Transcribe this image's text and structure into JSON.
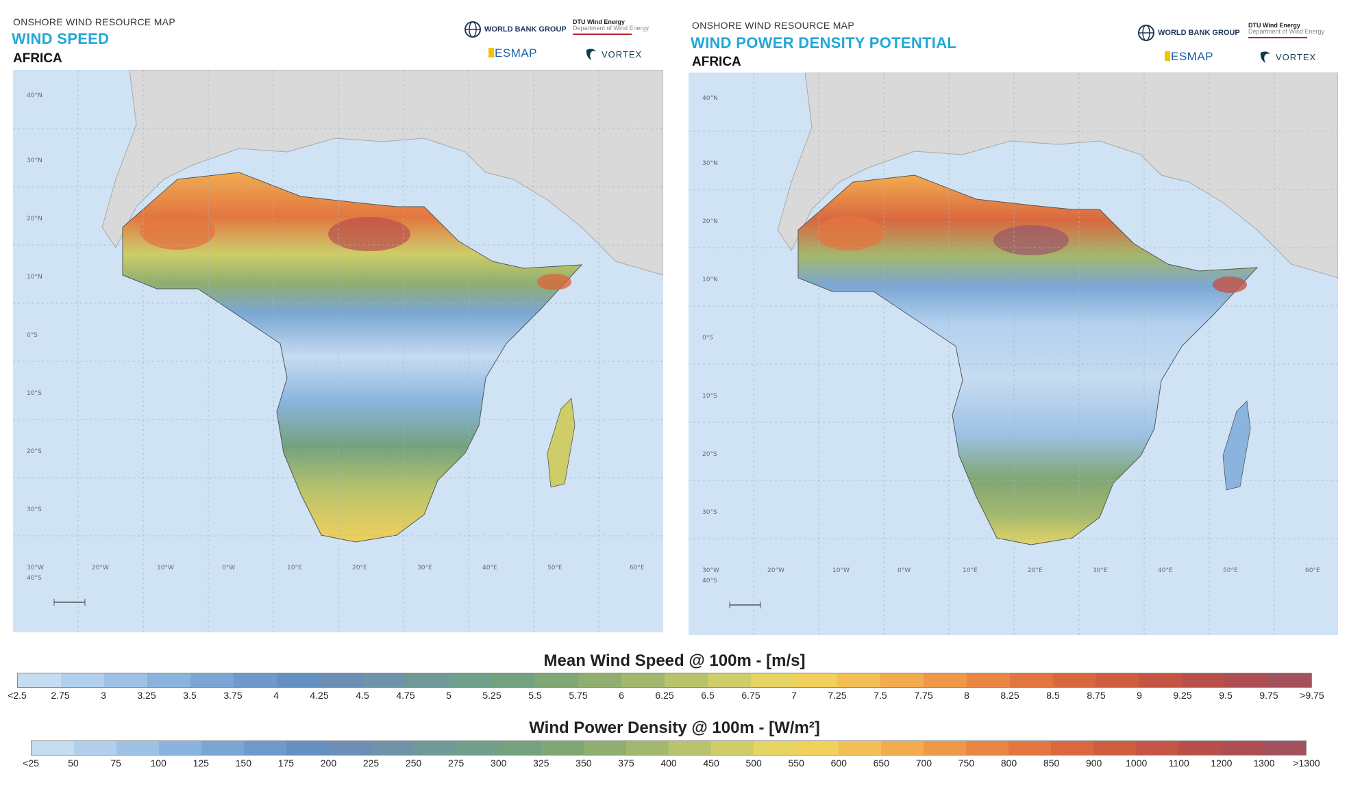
{
  "left_panel": {
    "supertitle": "ONSHORE WIND RESOURCE MAP",
    "title": "WIND SPEED",
    "region": "AFRICA"
  },
  "right_panel": {
    "supertitle": "ONSHORE WIND RESOURCE MAP",
    "title": "WIND POWER DENSITY POTENTIAL",
    "region": "AFRICA"
  },
  "logos": {
    "world_bank": "WORLD BANK GROUP",
    "dtu_line1": "DTU Wind Energy",
    "dtu_line2": "Department of Wind Energy",
    "esmap": "ESMAP",
    "vortex": "VORTEX"
  },
  "graticule": {
    "lon_labels": [
      "30°W",
      "20°W",
      "10°W",
      "0°W",
      "10°E",
      "20°E",
      "30°E",
      "40°E",
      "50°E",
      "60°E"
    ],
    "lat_labels": [
      "40°N",
      "30°N",
      "20°N",
      "10°N",
      "0°S",
      "10°S",
      "20°S",
      "30°S",
      "40°S"
    ]
  },
  "legend_speed": {
    "title": "Mean Wind Speed @ 100m - [m/s]",
    "labels": [
      "<2.5",
      "2.75",
      "3",
      "3.25",
      "3.5",
      "3.75",
      "4",
      "4.25",
      "4.5",
      "4.75",
      "5",
      "5.25",
      "5.5",
      "5.75",
      "6",
      "6.25",
      "6.5",
      "6.75",
      "7",
      "7.25",
      "7.5",
      "7.75",
      "8",
      "8.25",
      "8.5",
      "8.75",
      "9",
      "9.25",
      "9.5",
      "9.75",
      ">9.75"
    ]
  },
  "legend_power": {
    "title": "Wind Power Density @ 100m - [W/m²]",
    "labels": [
      "<25",
      "50",
      "75",
      "100",
      "125",
      "150",
      "175",
      "200",
      "225",
      "250",
      "275",
      "300",
      "325",
      "350",
      "375",
      "400",
      "450",
      "500",
      "550",
      "600",
      "650",
      "700",
      "750",
      "800",
      "850",
      "900",
      "1000",
      "1100",
      "1200",
      "1300",
      ">1300"
    ]
  },
  "colors": {
    "ocean": "#cfe3f5",
    "land_outside": "#d9d9d9",
    "title_blue": "#22a7d6",
    "ramp": [
      "#c6dcf1",
      "#b2d0ee",
      "#9ec2e6",
      "#8ab4de",
      "#7aa6d4",
      "#6d9aca",
      "#6591c2",
      "#6b8fb5",
      "#6f93a8",
      "#6f9a98",
      "#709f8b",
      "#74a27f",
      "#7fa774",
      "#8fae70",
      "#a3b86f",
      "#b9c36c",
      "#cfcd68",
      "#e6d463",
      "#f1d05b",
      "#f3bf55",
      "#f2ab4f",
      "#ef9849",
      "#ea8644",
      "#e27641",
      "#d9683f",
      "#cf5d40",
      "#c45443",
      "#b94f4a",
      "#ad4e52",
      "#a2515d",
      "#9a5667"
    ]
  }
}
